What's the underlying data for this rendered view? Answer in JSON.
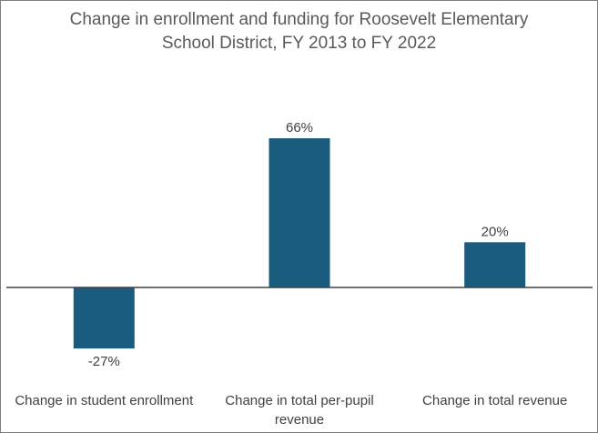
{
  "chart_data": {
    "type": "bar",
    "title_lines": [
      "Change in enrollment and funding for Roosevelt Elementary",
      "School District, FY 2013 to FY 2022"
    ],
    "categories": [
      [
        "Change in student enrollment"
      ],
      [
        "Change in total per-pupil",
        "revenue"
      ],
      [
        "Change in total revenue"
      ]
    ],
    "values": [
      -27,
      66,
      20
    ],
    "data_labels": [
      "-27%",
      "66%",
      "20%"
    ],
    "ylim": [
      -27,
      66
    ],
    "grid": false,
    "legend": "none",
    "bar_color": "#1a5c7d",
    "axis_color": "#404040"
  }
}
